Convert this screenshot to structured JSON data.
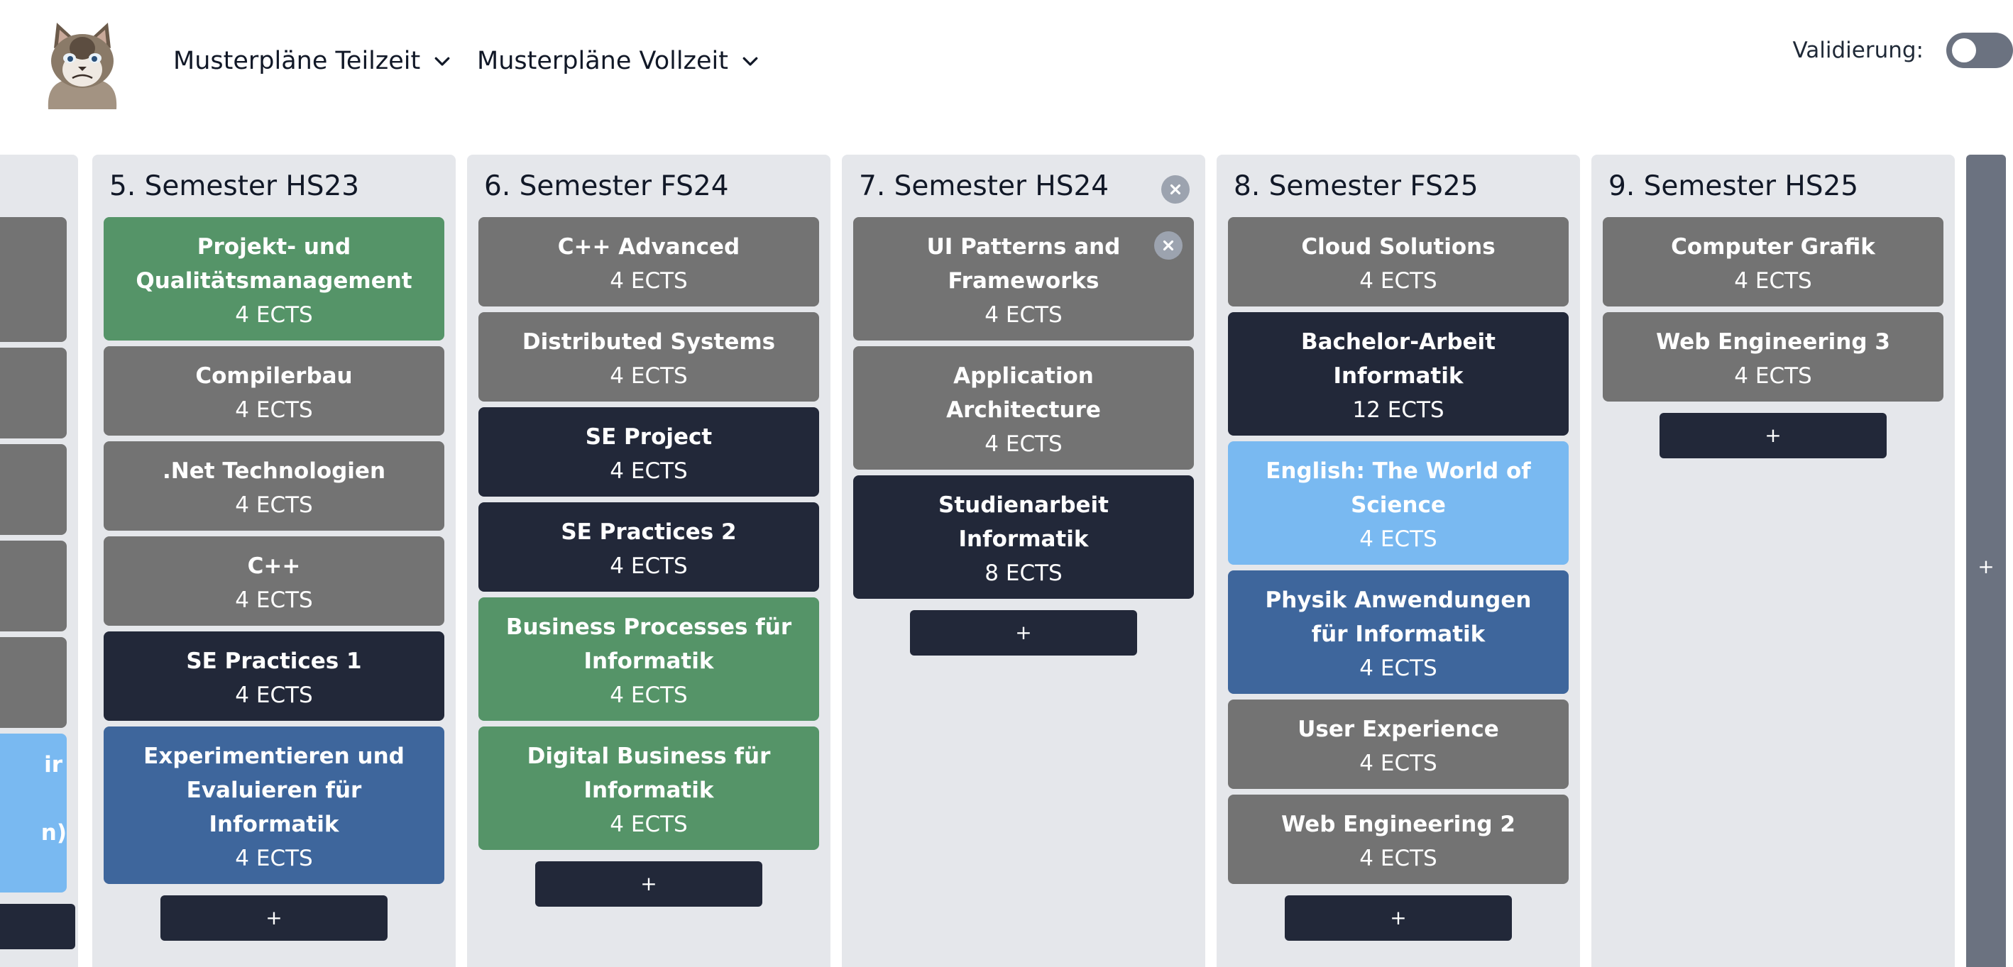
{
  "header": {
    "logo_alt": "Grumpy cat",
    "menus": [
      {
        "label": "Musterpläne Teilzeit"
      },
      {
        "label": "Musterpläne Vollzeit"
      }
    ],
    "validation_label": "Validierung:",
    "validation_enabled": false
  },
  "colors": {
    "obligatory": "#737373",
    "project": "#222839",
    "business": "#559468",
    "language": "#79b9f1",
    "math_physics": "#3e669c",
    "column_bg": "#e5e7eb"
  },
  "partial_column": {
    "modules": [
      {
        "label": "",
        "ects": "",
        "color": "gray"
      },
      {
        "label": "",
        "ects": "",
        "color": "gray"
      },
      {
        "label": "",
        "ects": "",
        "color": "gray"
      },
      {
        "label": "",
        "ects": "",
        "color": "gray"
      },
      {
        "label": "ir",
        "ects": "n)",
        "color": "lightblue"
      }
    ]
  },
  "semesters": [
    {
      "title": "5. Semester HS23",
      "add_label": "+",
      "modules": [
        {
          "name": "Projekt- und Qualitätsmanagement",
          "ects": "4 ECTS",
          "color": "green"
        },
        {
          "name": "Compilerbau",
          "ects": "4 ECTS",
          "color": "gray"
        },
        {
          "name": ".Net Technologien",
          "ects": "4 ECTS",
          "color": "gray"
        },
        {
          "name": "C++",
          "ects": "4 ECTS",
          "color": "gray"
        },
        {
          "name": "SE Practices 1",
          "ects": "4 ECTS",
          "color": "navy"
        },
        {
          "name": "Experimentieren und Evaluieren für Informatik",
          "ects": "4 ECTS",
          "color": "steel"
        }
      ]
    },
    {
      "title": "6. Semester FS24",
      "add_label": "+",
      "modules": [
        {
          "name": "C++ Advanced",
          "ects": "4 ECTS",
          "color": "gray"
        },
        {
          "name": "Distributed Systems",
          "ects": "4 ECTS",
          "color": "gray"
        },
        {
          "name": "SE Project",
          "ects": "4 ECTS",
          "color": "navy"
        },
        {
          "name": "SE Practices 2",
          "ects": "4 ECTS",
          "color": "navy"
        },
        {
          "name": "Business Processes für Informatik",
          "ects": "4 ECTS",
          "color": "green"
        },
        {
          "name": "Digital Business für Informatik",
          "ects": "4 ECTS",
          "color": "green"
        }
      ]
    },
    {
      "title": "7. Semester HS24",
      "add_label": "+",
      "has_remove": true,
      "modules": [
        {
          "name": "UI Patterns and Frameworks",
          "ects": "4 ECTS",
          "color": "gray",
          "hover_remove": true
        },
        {
          "name": "Application Architecture",
          "ects": "4 ECTS",
          "color": "gray"
        },
        {
          "name": "Studienarbeit Informatik",
          "ects": "8 ECTS",
          "color": "navy"
        }
      ]
    },
    {
      "title": "8. Semester FS25",
      "add_label": "+",
      "modules": [
        {
          "name": "Cloud Solutions",
          "ects": "4 ECTS",
          "color": "gray"
        },
        {
          "name": "Bachelor-Arbeit Informatik",
          "ects": "12 ECTS",
          "color": "navy"
        },
        {
          "name": "English: The World of Science",
          "ects": "4 ECTS",
          "color": "lightblue"
        },
        {
          "name": "Physik Anwendungen für Informatik",
          "ects": "4 ECTS",
          "color": "steel"
        },
        {
          "name": "User Experience",
          "ects": "4 ECTS",
          "color": "gray"
        },
        {
          "name": "Web Engineering 2",
          "ects": "4 ECTS",
          "color": "gray"
        }
      ]
    },
    {
      "title": "9. Semester HS25",
      "add_label": "+",
      "modules": [
        {
          "name": "Computer Grafik",
          "ects": "4 ECTS",
          "color": "gray"
        },
        {
          "name": "Web Engineering 3",
          "ects": "4 ECTS",
          "color": "gray"
        }
      ]
    }
  ],
  "add_semester_label": "+"
}
